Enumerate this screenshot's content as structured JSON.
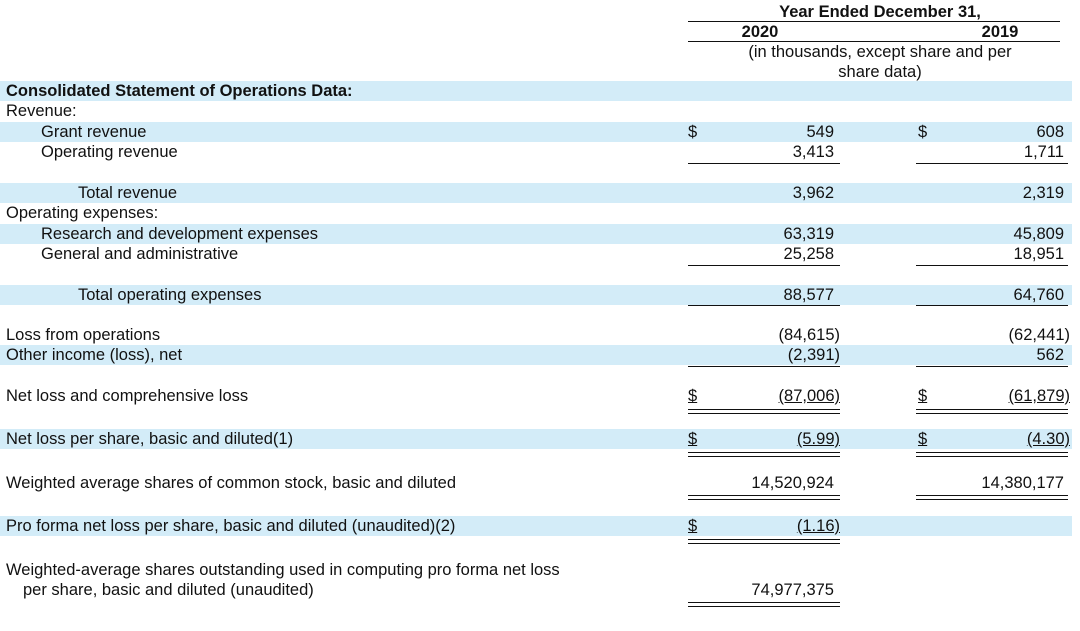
{
  "header": {
    "period_title": "Year Ended December 31,",
    "col_2020": "2020",
    "col_2019": "2019",
    "units_line1": "(in thousands, except share and per",
    "units_line2": "share data)"
  },
  "rows": {
    "section_title": "Consolidated Statement of Operations Data:",
    "revenue_heading": "Revenue:",
    "grant_revenue": {
      "label": "Grant revenue",
      "cur": "$",
      "v2020": "549",
      "v2019": "608"
    },
    "operating_revenue": {
      "label": "Operating revenue",
      "v2020": "3,413",
      "v2019": "1,711"
    },
    "total_revenue": {
      "label": "Total revenue",
      "v2020": "3,962",
      "v2019": "2,319"
    },
    "opex_heading": "Operating expenses:",
    "rnd": {
      "label": "Research and development expenses",
      "v2020": "63,319",
      "v2019": "45,809"
    },
    "gna": {
      "label": "General and administrative",
      "v2020": "25,258",
      "v2019": "18,951"
    },
    "total_opex": {
      "label": "Total operating expenses",
      "v2020": "88,577",
      "v2019": "64,760"
    },
    "loss_ops": {
      "label": "Loss from operations",
      "v2020": "(84,615)",
      "v2019": "(62,441)"
    },
    "other_income": {
      "label": "Other income (loss), net",
      "v2020": "(2,391)",
      "v2019": "562"
    },
    "net_loss": {
      "label": "Net loss and comprehensive loss",
      "cur": "$",
      "v2020": "(87,006)",
      "v2019": "(61,879)"
    },
    "eps": {
      "label": "Net loss per share, basic and diluted(1)",
      "cur": "$",
      "v2020": "(5.99)",
      "v2019": "(4.30)"
    },
    "wavg_shares": {
      "label": "Weighted average shares of common stock, basic and diluted",
      "v2020": "14,520,924",
      "v2019": "14,380,177"
    },
    "pro_forma_eps": {
      "label": "Pro forma net loss per share, basic and diluted (unaudited)(2)",
      "cur": "$",
      "v2020": "(1.16)"
    },
    "pro_forma_shares": {
      "label1": "Weighted-average shares outstanding used in computing pro forma net loss",
      "label2": "per share, basic and diluted (unaudited)",
      "v2020": "74,977,375"
    }
  }
}
